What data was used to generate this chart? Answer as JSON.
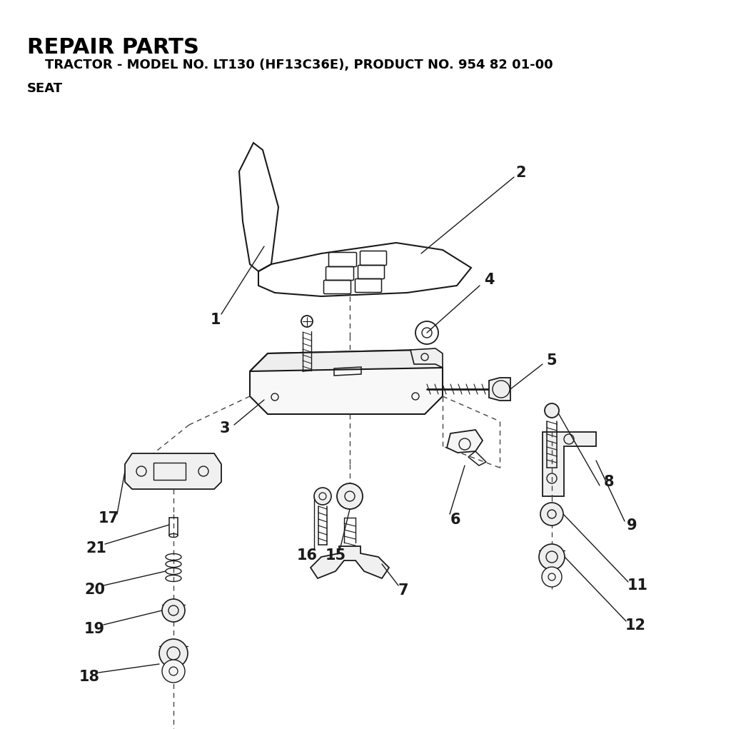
{
  "title": "REPAIR PARTS",
  "subtitle": "    TRACTOR - MODEL NO. LT130 (HF13C36E), PRODUCT NO. 954 82 01-00",
  "section": "SEAT",
  "bg_color": "#ffffff",
  "line_color": "#1a1a1a",
  "title_fontsize": 22,
  "subtitle_fontsize": 13,
  "section_fontsize": 13,
  "label_fontsize": 15
}
